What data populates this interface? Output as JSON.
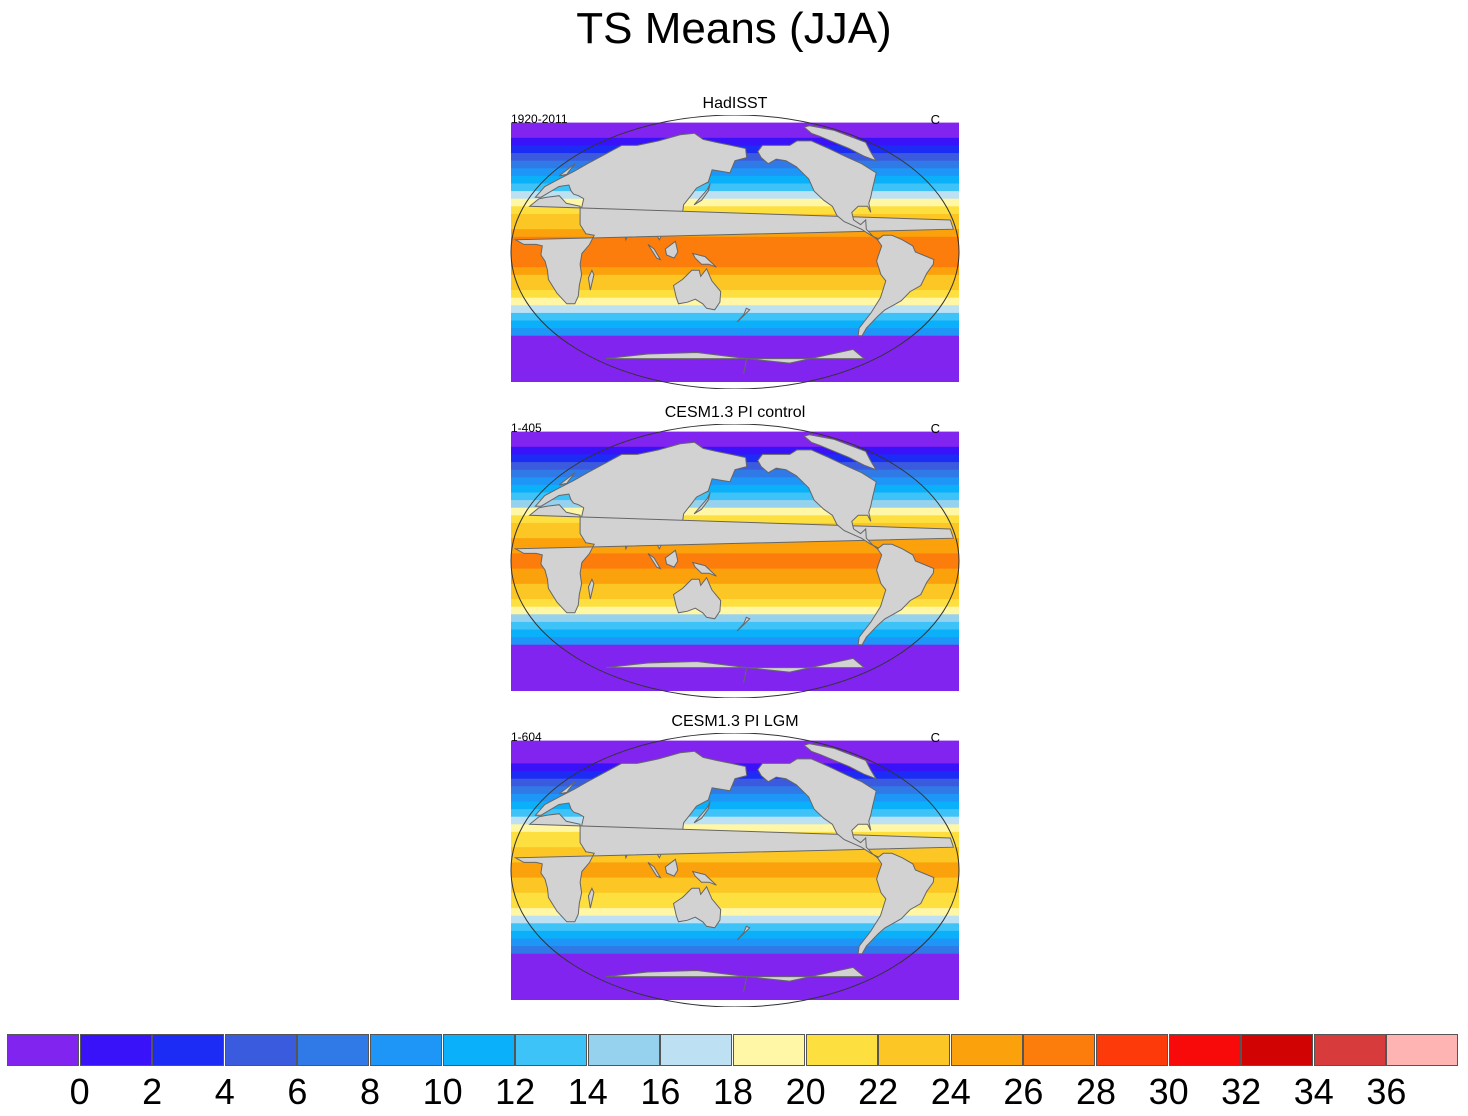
{
  "title": "TS Means (JJA)",
  "colors": {
    "land": "#d2d2d2",
    "coast": "#666666",
    "levels": [
      "#8224f0",
      "#3a12fa",
      "#1c2cf5",
      "#3b5bdf",
      "#2f7ae6",
      "#1e96f7",
      "#0bb0fa",
      "#3ec3f9",
      "#96d2ee",
      "#bde1f3",
      "#fff6a6",
      "#fde03f",
      "#fcc624",
      "#fba10b",
      "#fc7d0b",
      "#fc3a0a",
      "#f80a0a",
      "#d20303",
      "#d83b3b",
      "#ffb4b4"
    ]
  },
  "panels": [
    {
      "id": "hadisst",
      "title": "HadISST",
      "left_label": "1920-2011",
      "right_label": "C",
      "shift": 0
    },
    {
      "id": "control",
      "title": "CESM1.3 PI control",
      "left_label": "1-405",
      "right_label": "C",
      "shift": -0.3
    },
    {
      "id": "lgm",
      "title": "CESM1.3 PI LGM",
      "left_label": "1-604",
      "right_label": "C",
      "shift": -2.2
    }
  ],
  "colorbar": {
    "units": "C",
    "labels": [
      "0",
      "2",
      "4",
      "6",
      "8",
      "10",
      "12",
      "14",
      "16",
      "18",
      "20",
      "22",
      "24",
      "26",
      "28",
      "30",
      "32",
      "34",
      "36"
    ]
  }
}
